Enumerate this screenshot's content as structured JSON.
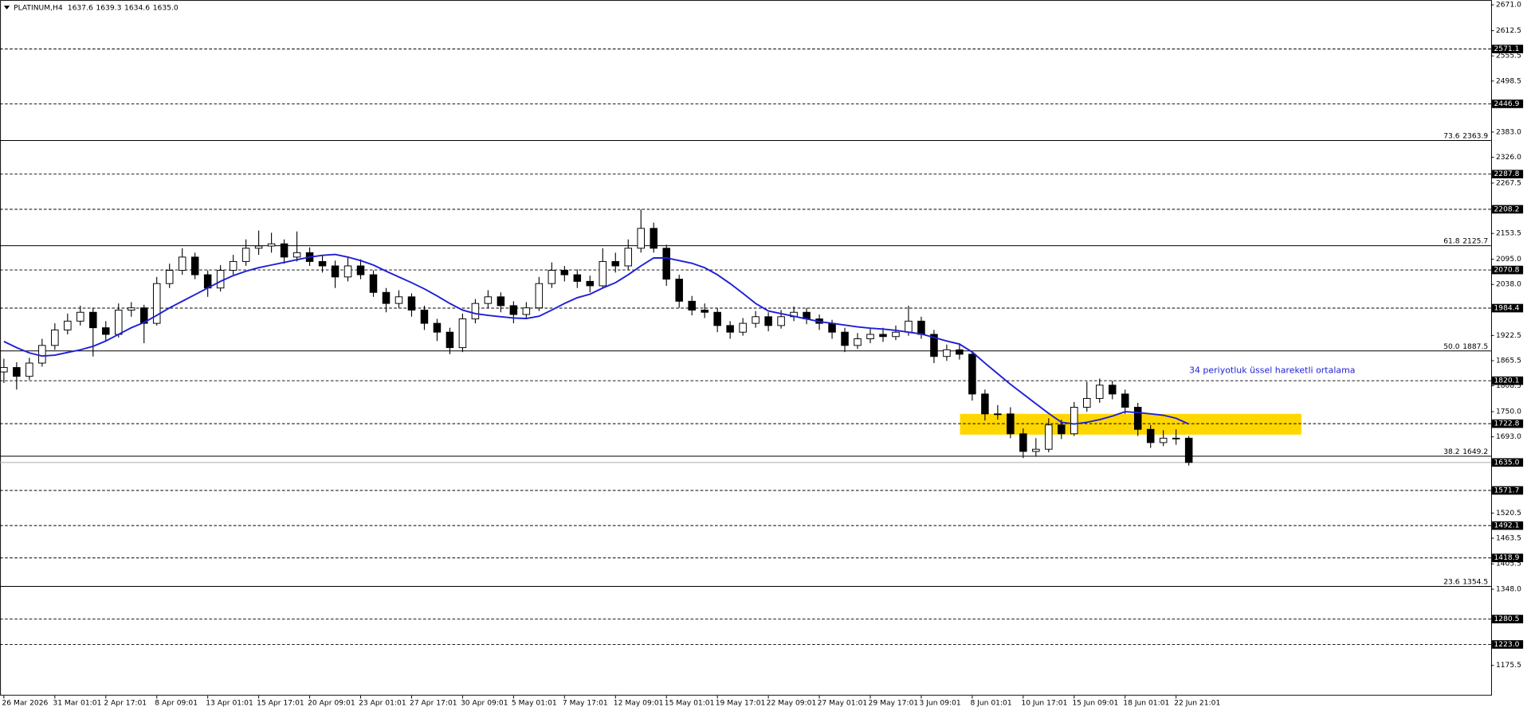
{
  "chart_data": {
    "type": "candlestick",
    "symbol": "PLATINUM,H4",
    "header_ohlc": [
      1637.6,
      1639.3,
      1634.6,
      {
        "value": 1635,
        "label": "1635.0"
      }
    ],
    "categories": [
      "26 Mar 2026",
      null,
      null,
      null,
      "31 Mar 01:01",
      null,
      null,
      null,
      "2 Apr 17:01",
      null,
      null,
      null,
      "8 Apr 09:01",
      null,
      null,
      null,
      "13 Apr 01:01",
      null,
      null,
      null,
      "15 Apr 17:01",
      null,
      null,
      null,
      "20 Apr 09:01",
      null,
      null,
      null,
      "23 Apr 01:01",
      null,
      null,
      null,
      "27 Apr 17:01",
      null,
      null,
      null,
      "30 Apr 09:01",
      null,
      null,
      null,
      "5 May 01:01",
      null,
      null,
      null,
      "7 May 17:01",
      null,
      null,
      null,
      "12 May 09:01",
      null,
      null,
      null,
      "15 May 01:01",
      null,
      null,
      null,
      "19 May 17:01",
      null,
      null,
      null,
      "22 May 09:01",
      null,
      null,
      null,
      "27 May 01:01",
      null,
      null,
      null,
      "29 May 17:01",
      null,
      null,
      null,
      "3 Jun 09:01",
      null,
      null,
      null,
      "8 Jun 01:01",
      null,
      null,
      null,
      "10 Jun 17:01",
      null,
      null,
      null,
      "15 Jun 09:01",
      null,
      null,
      null,
      "18 Jun 01:01",
      null,
      null,
      null,
      "22 Jun 21:01",
      null
    ],
    "ohlc": [
      [
        1840,
        1870,
        1815,
        1850
      ],
      [
        1850,
        1862,
        1800,
        1830
      ],
      [
        1830,
        1872,
        1822,
        1860
      ],
      [
        1860,
        1915,
        1852,
        1900
      ],
      [
        1900,
        1950,
        1890,
        1935
      ],
      [
        1935,
        1972,
        1925,
        1955
      ],
      [
        1955,
        1990,
        1945,
        1975
      ],
      [
        1975,
        1985,
        1875,
        1940
      ],
      [
        1940,
        1955,
        1910,
        1925
      ],
      [
        1925,
        1995,
        1918,
        1980
      ],
      [
        1980,
        1998,
        1965,
        1985
      ],
      [
        1985,
        1992,
        1905,
        1950
      ],
      [
        1950,
        2055,
        1945,
        2040
      ],
      [
        2040,
        2085,
        2030,
        2070
      ],
      [
        2070,
        2120,
        2060,
        2100
      ],
      [
        2100,
        2110,
        2050,
        2060
      ],
      [
        2060,
        2070,
        2010,
        2030
      ],
      [
        2030,
        2082,
        2022,
        2070
      ],
      [
        2070,
        2105,
        2060,
        2090
      ],
      [
        2090,
        2140,
        2080,
        2120
      ],
      [
        2120,
        2160,
        2105,
        2125
      ],
      [
        2125,
        2155,
        2110,
        2130
      ],
      [
        2130,
        2140,
        2085,
        2100
      ],
      [
        2100,
        2158,
        2090,
        2110
      ],
      [
        2110,
        2122,
        2080,
        2090
      ],
      [
        2090,
        2105,
        2065,
        2080
      ],
      [
        2080,
        2092,
        2030,
        2055
      ],
      [
        2055,
        2100,
        2045,
        2080
      ],
      [
        2080,
        2095,
        2050,
        2060
      ],
      [
        2060,
        2070,
        2010,
        2020
      ],
      [
        2020,
        2030,
        1975,
        1995
      ],
      [
        1995,
        2025,
        1985,
        2010
      ],
      [
        2010,
        2018,
        1965,
        1980
      ],
      [
        1980,
        1990,
        1935,
        1950
      ],
      [
        1950,
        1960,
        1910,
        1930
      ],
      [
        1930,
        1940,
        1880,
        1895
      ],
      [
        1895,
        1972,
        1885,
        1960
      ],
      [
        1960,
        2005,
        1950,
        1995
      ],
      [
        1995,
        2025,
        1985,
        2010
      ],
      [
        2010,
        2020,
        1975,
        1990
      ],
      [
        1990,
        2000,
        1950,
        1970
      ],
      [
        1970,
        1998,
        1960,
        1985
      ],
      [
        1985,
        2055,
        1978,
        2040
      ],
      [
        2040,
        2088,
        2030,
        2070
      ],
      [
        2070,
        2080,
        2045,
        2060
      ],
      [
        2060,
        2072,
        2030,
        2045
      ],
      [
        2045,
        2058,
        2020,
        2035
      ],
      [
        2035,
        2120,
        2030,
        2090
      ],
      [
        2090,
        2110,
        2065,
        2080
      ],
      [
        2080,
        2140,
        2070,
        2120
      ],
      [
        2120,
        2208,
        2110,
        2165
      ],
      [
        2165,
        2178,
        2110,
        2120
      ],
      [
        2120,
        2128,
        2035,
        2050
      ],
      [
        2050,
        2060,
        1985,
        2000
      ],
      [
        2000,
        2012,
        1968,
        1980
      ],
      [
        1980,
        1995,
        1962,
        1975
      ],
      [
        1975,
        1985,
        1930,
        1945
      ],
      [
        1945,
        1955,
        1915,
        1930
      ],
      [
        1930,
        1962,
        1922,
        1950
      ],
      [
        1950,
        1978,
        1940,
        1965
      ],
      [
        1965,
        1975,
        1932,
        1945
      ],
      [
        1945,
        1980,
        1938,
        1965
      ],
      [
        1965,
        1988,
        1955,
        1975
      ],
      [
        1975,
        1985,
        1948,
        1960
      ],
      [
        1960,
        1970,
        1935,
        1950
      ],
      [
        1950,
        1958,
        1915,
        1930
      ],
      [
        1930,
        1940,
        1885,
        1900
      ],
      [
        1900,
        1928,
        1892,
        1915
      ],
      [
        1915,
        1938,
        1905,
        1925
      ],
      [
        1925,
        1940,
        1908,
        1920
      ],
      [
        1920,
        1945,
        1912,
        1930
      ],
      [
        1930,
        1990,
        1922,
        1955
      ],
      [
        1955,
        1965,
        1915,
        1925
      ],
      [
        1925,
        1935,
        1860,
        1875
      ],
      [
        1875,
        1902,
        1865,
        1890
      ],
      [
        1890,
        1905,
        1868,
        1880
      ],
      [
        1880,
        1888,
        1775,
        1790
      ],
      [
        1790,
        1800,
        1730,
        1745
      ],
      [
        1745,
        1765,
        1732,
        1745
      ],
      [
        1745,
        1760,
        1690,
        1700
      ],
      [
        1700,
        1712,
        1645,
        1660
      ],
      [
        1660,
        1690,
        1648,
        1665
      ],
      [
        1665,
        1735,
        1658,
        1720
      ],
      [
        1720,
        1732,
        1688,
        1700
      ],
      [
        1700,
        1772,
        1695,
        1760
      ],
      [
        1760,
        1818,
        1750,
        1780
      ],
      [
        1780,
        1825,
        1770,
        1810
      ],
      [
        1810,
        1820,
        1778,
        1790
      ],
      [
        1790,
        1800,
        1745,
        1760
      ],
      [
        1760,
        1770,
        1695,
        1710
      ],
      [
        1710,
        1720,
        1668,
        1680
      ],
      [
        1680,
        1708,
        1672,
        1690
      ],
      [
        1690,
        1710,
        1675,
        1690
      ],
      [
        1690,
        1695,
        1628,
        1635
      ]
    ],
    "ema": {
      "color": "#1f1fd6",
      "values": [
        1909,
        1895,
        1883,
        1876,
        1878,
        1884,
        1890,
        1898,
        1910,
        1925,
        1940,
        1952,
        1968,
        1985,
        2000,
        2015,
        2030,
        2045,
        2058,
        2068,
        2076,
        2082,
        2088,
        2094,
        2100,
        2104,
        2106,
        2100,
        2092,
        2082,
        2068,
        2055,
        2042,
        2028,
        2012,
        1995,
        1980,
        1972,
        1968,
        1965,
        1962,
        1961,
        1966,
        1980,
        1995,
        2008,
        2016,
        2030,
        2042,
        2060,
        2080,
        2098,
        2098,
        2092,
        2086,
        2076,
        2060,
        2040,
        2018,
        1995,
        1978,
        1972,
        1966,
        1960,
        1954,
        1950,
        1946,
        1942,
        1939,
        1937,
        1934,
        1930,
        1926,
        1918,
        1910,
        1903,
        1885,
        1860,
        1836,
        1812,
        1790,
        1768,
        1746,
        1726,
        1722,
        1726,
        1732,
        1740,
        1750,
        1748,
        1745,
        1742,
        1735,
        1722
      ]
    },
    "annotation": {
      "text": "34 periyotluk üssel hareketli ortalama",
      "value": 1843,
      "color": "#1f1fd6"
    },
    "zone": {
      "ylim": [
        1698,
        1745
      ],
      "color": "#ffd700"
    },
    "ylim": [
      1107,
      2682
    ],
    "yticks": [
      {
        "value": 2671,
        "label": "2671.0"
      },
      2612.5,
      2555.5,
      2498.5,
      {
        "value": 2383,
        "label": "2383.0"
      },
      {
        "value": 2326,
        "label": "2326.0"
      },
      2267.5,
      2153.5,
      {
        "value": 2095,
        "label": "2095.0"
      },
      {
        "value": 2038,
        "label": "2038.0"
      },
      1922.5,
      1865.5,
      1808.5,
      {
        "value": 1750,
        "label": "1750.0"
      },
      {
        "value": 1693,
        "label": "1693.0"
      },
      1520.5,
      1463.5,
      1405.5,
      {
        "value": 1348,
        "label": "1348.0"
      },
      1175.5
    ],
    "levels": [
      2571.1,
      2446.9,
      2287.8,
      2208.2,
      2070.8,
      1984.4,
      1820.1,
      1722.8,
      1571.7,
      1492.1,
      1418.9,
      1280.5,
      {
        "value": 1223,
        "label": "1223.0"
      }
    ],
    "fib_levels": [
      {
        "ratio": 73.6,
        "value": 2363.9
      },
      {
        "ratio": 61.8,
        "value": 2125.7
      },
      {
        "ratio": {
          "value": 50,
          "label": "50.0"
        },
        "value": 1887.5
      },
      {
        "ratio": 38.2,
        "value": 1649.2
      },
      {
        "ratio": 23.6,
        "value": 1354.5
      }
    ],
    "current_price": {
      "value": 1635,
      "label": "1635.0"
    }
  }
}
